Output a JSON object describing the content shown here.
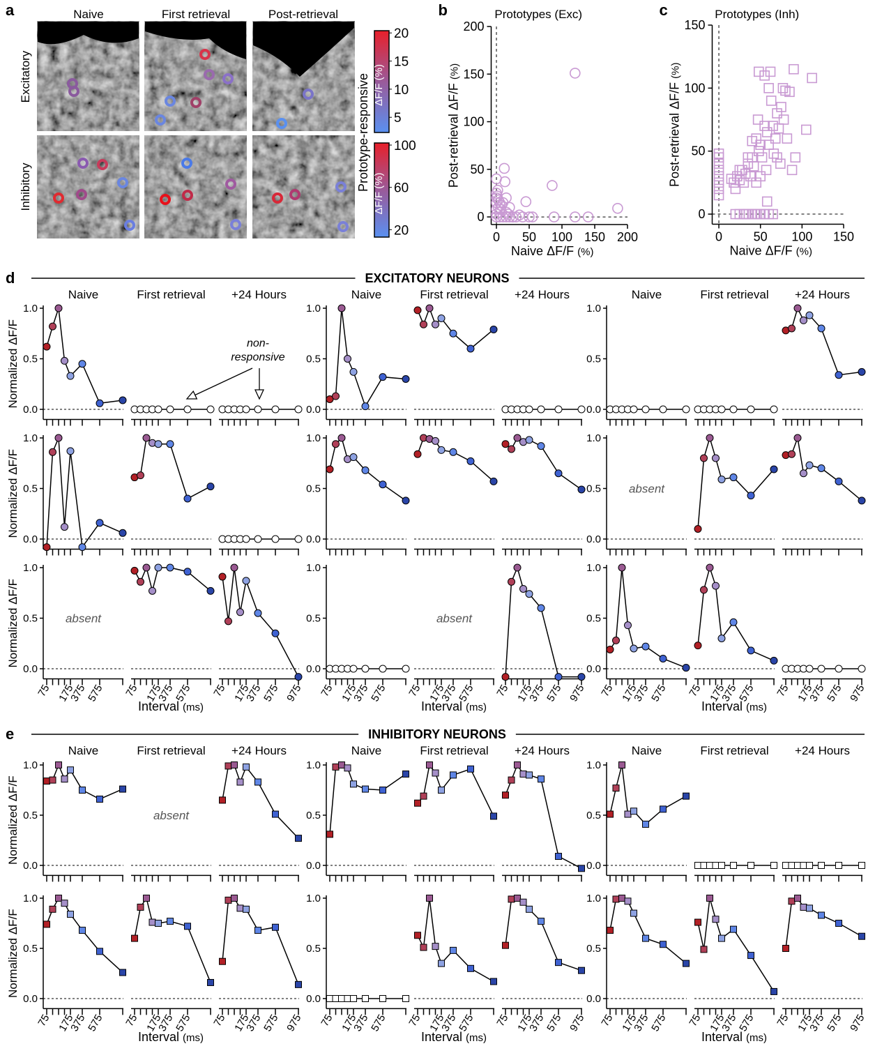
{
  "panel_a": {
    "letter": "a",
    "columns": [
      "Naive",
      "First retrieval",
      "Post-retrieval"
    ],
    "rows": [
      "Excitatory",
      "Inhibitory"
    ],
    "colorbar_title": "Prototype-responsive",
    "colorbars": [
      {
        "label": "ΔF/F (%)",
        "lim": [
          2.3,
          20.4
        ],
        "ticks": [
          20,
          15,
          10,
          5
        ],
        "colors": [
          "#e8202a",
          "#9a5a9a",
          "#5a90f0"
        ]
      },
      {
        "label": "ΔF/F (%)",
        "lim": [
          13,
          102
        ],
        "ticks": [
          100,
          60,
          20
        ],
        "colors": [
          "#e8202a",
          "#9a5a9a",
          "#5a90f0"
        ]
      }
    ]
  },
  "chart_data": [
    {
      "type": "scatter",
      "letter": "b",
      "title": "Prototypes (Exc)",
      "xlabel": "Naive ΔF/F",
      "xunit": "(%)",
      "ylabel": "Post-retrieval  ΔF/F",
      "yunit": "(%)",
      "marker": "circle",
      "color": "#c99ad3",
      "xlim": [
        -8,
        200
      ],
      "ylim": [
        -8,
        200
      ],
      "xticks": [
        0,
        50,
        100,
        150,
        200
      ],
      "yticks": [
        0,
        50,
        100,
        150,
        200
      ],
      "x": [
        120,
        85,
        185,
        88,
        120,
        140,
        50,
        55,
        40,
        30,
        25,
        20,
        15,
        10,
        5,
        0,
        0,
        0,
        0,
        0,
        0,
        2,
        5,
        10,
        12,
        13,
        15,
        20,
        45,
        5,
        15,
        8,
        3,
        35,
        0,
        1,
        3,
        6,
        25,
        18
      ],
      "y": [
        151,
        33,
        9,
        0,
        0,
        0,
        0,
        0,
        0,
        0,
        0,
        0,
        0,
        0,
        0,
        0,
        8,
        15,
        20,
        25,
        40,
        28,
        15,
        15,
        51,
        37,
        20,
        10,
        16,
        5,
        5,
        12,
        10,
        2,
        3,
        22,
        18,
        8,
        0,
        3
      ]
    },
    {
      "type": "scatter",
      "letter": "c",
      "title": "Prototypes (Inh)",
      "xlabel": "Naive ΔF/F",
      "xunit": "(%)",
      "ylabel": "Post-retrieval  ΔF/F",
      "yunit": "(%)",
      "marker": "square",
      "color": "#c99ad3",
      "xlim": [
        -8,
        150
      ],
      "ylim": [
        -8,
        150
      ],
      "xticks": [
        0,
        50,
        100,
        150
      ],
      "yticks": [
        0,
        50,
        100,
        150
      ],
      "x": [
        20,
        25,
        30,
        33,
        36,
        40,
        43,
        46,
        50,
        55,
        60,
        65,
        0,
        0,
        0,
        0,
        0,
        0,
        0,
        0,
        15,
        18,
        20,
        22,
        25,
        28,
        30,
        32,
        35,
        38,
        40,
        42,
        45,
        47,
        48,
        50,
        52,
        55,
        57,
        58,
        60,
        62,
        63,
        65,
        66,
        68,
        70,
        72,
        74,
        75,
        77,
        78,
        80,
        82,
        85,
        88,
        90,
        92,
        48,
        55,
        58,
        45,
        35,
        25,
        40,
        50,
        70,
        105,
        112,
        60
      ],
      "y": [
        0,
        0,
        0,
        0,
        0,
        0,
        0,
        0,
        0,
        0,
        0,
        0,
        15,
        20,
        25,
        30,
        35,
        40,
        45,
        48,
        28,
        25,
        20,
        30,
        27,
        35,
        25,
        32,
        40,
        30,
        45,
        38,
        60,
        75,
        50,
        55,
        45,
        70,
        35,
        65,
        100,
        113,
        90,
        70,
        48,
        60,
        80,
        68,
        40,
        85,
        100,
        75,
        98,
        60,
        97,
        35,
        115,
        45,
        113,
        110,
        10,
        25,
        45,
        35,
        58,
        30,
        45,
        67,
        108,
        55
      ]
    },
    {
      "type": "line-grid",
      "letter": "d",
      "title": "EXCITATORY NEURONS",
      "panel_titles": [
        "Naive",
        "First retrieval",
        "+24 Hours"
      ],
      "categories": [
        "75",
        null,
        null,
        null,
        "175",
        "375",
        "575",
        "975"
      ],
      "ylabel": "Normalized ΔF/F",
      "xlabel": "Interval",
      "xunit": "(ms)",
      "ylim": [
        -0.1,
        1
      ],
      "yticks": [
        {
          "value": 0,
          "label": "0.0"
        },
        {
          "value": 0.5,
          "label": "0.5"
        },
        {
          "value": 1,
          "label": "1.0"
        }
      ],
      "marker": "circle",
      "point_colors": [
        "#b22026",
        "#b04058",
        "#9a5a92",
        "#a58fc8",
        "#8ea2e2",
        "#5f86e6",
        "#3f62d2",
        "#2a45a8"
      ],
      "neurons": [
        {
          "annotation": [
            "non-",
            "responsive"
          ],
          "panels": [
            {
              "values": [
                0.62,
                0.82,
                1.0,
                0.48,
                0.33,
                0.45,
                0.06,
                0.09
              ]
            },
            {
              "values": [
                0,
                0,
                0,
                0,
                0,
                0,
                0,
                0
              ]
            },
            {
              "values": [
                0,
                0,
                0,
                0,
                0,
                0,
                0,
                0
              ]
            }
          ]
        },
        {
          "panels": [
            {
              "values": [
                0.1,
                0.13,
                1.0,
                0.5,
                0.37,
                0.03,
                0.32,
                0.3
              ]
            },
            {
              "values": [
                0.98,
                0.84,
                1.0,
                0.84,
                0.9,
                0.75,
                0.6,
                0.79
              ]
            },
            {
              "values": [
                0,
                0,
                0,
                0,
                0,
                0,
                0,
                0
              ]
            }
          ]
        },
        {
          "panels": [
            {
              "values": [
                0,
                0,
                0,
                0,
                0,
                0,
                0,
                0
              ]
            },
            {
              "values": [
                0,
                0,
                0,
                0,
                0,
                0,
                0,
                0
              ]
            },
            {
              "values": [
                0.78,
                0.8,
                1.0,
                0.88,
                0.93,
                0.8,
                0.34,
                0.37
              ]
            }
          ]
        },
        {
          "panels": [
            {
              "values": [
                -0.08,
                0.86,
                1.0,
                0.12,
                0.87,
                -0.08,
                0.16,
                0.06
              ]
            },
            {
              "values": [
                0.61,
                0.63,
                1.0,
                0.95,
                0.94,
                0.94,
                0.4,
                0.52
              ]
            },
            {
              "values": [
                0,
                0,
                0,
                0,
                0,
                0,
                0,
                0
              ]
            }
          ]
        },
        {
          "panels": [
            {
              "values": [
                0.69,
                0.94,
                1.0,
                0.79,
                0.81,
                0.68,
                0.54,
                0.38
              ]
            },
            {
              "values": [
                0.84,
                1.0,
                0.99,
                0.97,
                0.88,
                0.86,
                0.77,
                0.57
              ]
            },
            {
              "values": [
                0.94,
                0.89,
                1.0,
                0.96,
                0.98,
                0.92,
                0.65,
                0.49
              ]
            }
          ]
        },
        {
          "panels": [
            {
              "annotation": "absent"
            },
            {
              "values": [
                0.1,
                0.8,
                1.0,
                0.8,
                0.59,
                0.61,
                0.43,
                0.69
              ]
            },
            {
              "values": [
                0.83,
                0.84,
                1.0,
                0.65,
                0.73,
                0.7,
                0.57,
                0.38
              ]
            }
          ]
        },
        {
          "panels": [
            {
              "annotation": "absent"
            },
            {
              "values": [
                0.97,
                0.86,
                1.0,
                0.77,
                1.0,
                1.0,
                0.96,
                0.77
              ]
            },
            {
              "values": [
                0.91,
                0.47,
                1.0,
                0.56,
                0.87,
                0.55,
                0.35,
                -0.08
              ]
            }
          ]
        },
        {
          "panels": [
            {
              "values": [
                0,
                0,
                0,
                0,
                0,
                0,
                0,
                0
              ]
            },
            {
              "annotation": "absent"
            },
            {
              "values": [
                -0.08,
                0.86,
                1.0,
                0.79,
                0.74,
                0.6,
                -0.08,
                -0.08
              ]
            }
          ]
        },
        {
          "panels": [
            {
              "values": [
                0.19,
                0.28,
                1.0,
                0.43,
                0.2,
                0.22,
                0.1,
                0.01
              ]
            },
            {
              "values": [
                0.23,
                0.78,
                1.0,
                0.82,
                0.3,
                0.46,
                0.18,
                0.08
              ]
            },
            {
              "values": [
                0,
                0,
                0,
                0,
                0,
                0,
                0,
                0
              ]
            }
          ]
        }
      ]
    },
    {
      "type": "line-grid",
      "letter": "e",
      "title": "INHIBITORY NEURONS",
      "panel_titles": [
        "Naive",
        "First retrieval",
        "+24 Hours"
      ],
      "categories": [
        "75",
        null,
        null,
        null,
        "175",
        "375",
        "575",
        "975"
      ],
      "ylabel": "Normalized ΔF/F",
      "xlabel": "Interval",
      "xunit": "(ms)",
      "ylim": [
        -0.1,
        1
      ],
      "yticks": [
        {
          "value": 0,
          "label": "0.0"
        },
        {
          "value": 0.5,
          "label": "0.5"
        },
        {
          "value": 1,
          "label": "1.0"
        }
      ],
      "marker": "square",
      "point_colors": [
        "#b22026",
        "#b04058",
        "#9a5a92",
        "#a58fc8",
        "#8ea2e2",
        "#5f86e6",
        "#3f62d2",
        "#2a45a8"
      ],
      "neurons": [
        {
          "panels": [
            {
              "values": [
                0.84,
                0.85,
                1.0,
                0.86,
                0.95,
                0.75,
                0.66,
                0.76
              ]
            },
            {
              "annotation": "absent"
            },
            {
              "values": [
                0.65,
                0.99,
                1.0,
                0.83,
                0.98,
                0.83,
                0.51,
                0.27
              ]
            }
          ]
        },
        {
          "panels": [
            {
              "values": [
                0.31,
                0.98,
                1.0,
                0.97,
                0.81,
                0.76,
                0.75,
                0.91
              ]
            },
            {
              "values": [
                0.62,
                0.69,
                1.0,
                0.92,
                0.75,
                0.9,
                0.96,
                0.49
              ]
            },
            {
              "values": [
                0.7,
                0.85,
                1.0,
                0.91,
                0.9,
                0.86,
                0.09,
                -0.03
              ]
            }
          ]
        },
        {
          "panels": [
            {
              "values": [
                0.51,
                0.77,
                1.0,
                0.51,
                0.54,
                0.41,
                0.56,
                0.69
              ]
            },
            {
              "values": [
                0,
                0,
                0,
                0,
                0,
                0,
                0,
                0
              ]
            },
            {
              "values": [
                0,
                0,
                0,
                0,
                0,
                0,
                0,
                0
              ]
            }
          ]
        },
        {
          "panels": [
            {
              "values": [
                0.74,
                0.89,
                1.0,
                0.95,
                0.84,
                0.68,
                0.47,
                0.26
              ]
            },
            {
              "values": [
                0.6,
                0.91,
                1.0,
                0.76,
                0.75,
                0.77,
                0.72,
                0.16
              ]
            },
            {
              "values": [
                0.37,
                0.98,
                1.0,
                0.9,
                0.89,
                0.68,
                0.71,
                0.14
              ]
            }
          ]
        },
        {
          "panels": [
            {
              "values": [
                0,
                0,
                0,
                0,
                0,
                0,
                0,
                0
              ]
            },
            {
              "values": [
                0.63,
                0.51,
                1.0,
                0.52,
                0.35,
                0.48,
                0.3,
                0.17
              ]
            },
            {
              "values": [
                0.53,
                0.99,
                1.0,
                0.96,
                0.89,
                0.77,
                0.36,
                0.28
              ]
            }
          ]
        },
        {
          "panels": [
            {
              "values": [
                0.68,
                0.99,
                1.0,
                0.97,
                0.85,
                0.6,
                0.54,
                0.35
              ]
            },
            {
              "values": [
                0.76,
                0.49,
                1.0,
                0.79,
                0.6,
                0.69,
                0.43,
                0.07
              ]
            },
            {
              "values": [
                0.5,
                0.97,
                1.0,
                0.91,
                0.9,
                0.83,
                0.75,
                0.62
              ]
            }
          ]
        }
      ]
    }
  ]
}
